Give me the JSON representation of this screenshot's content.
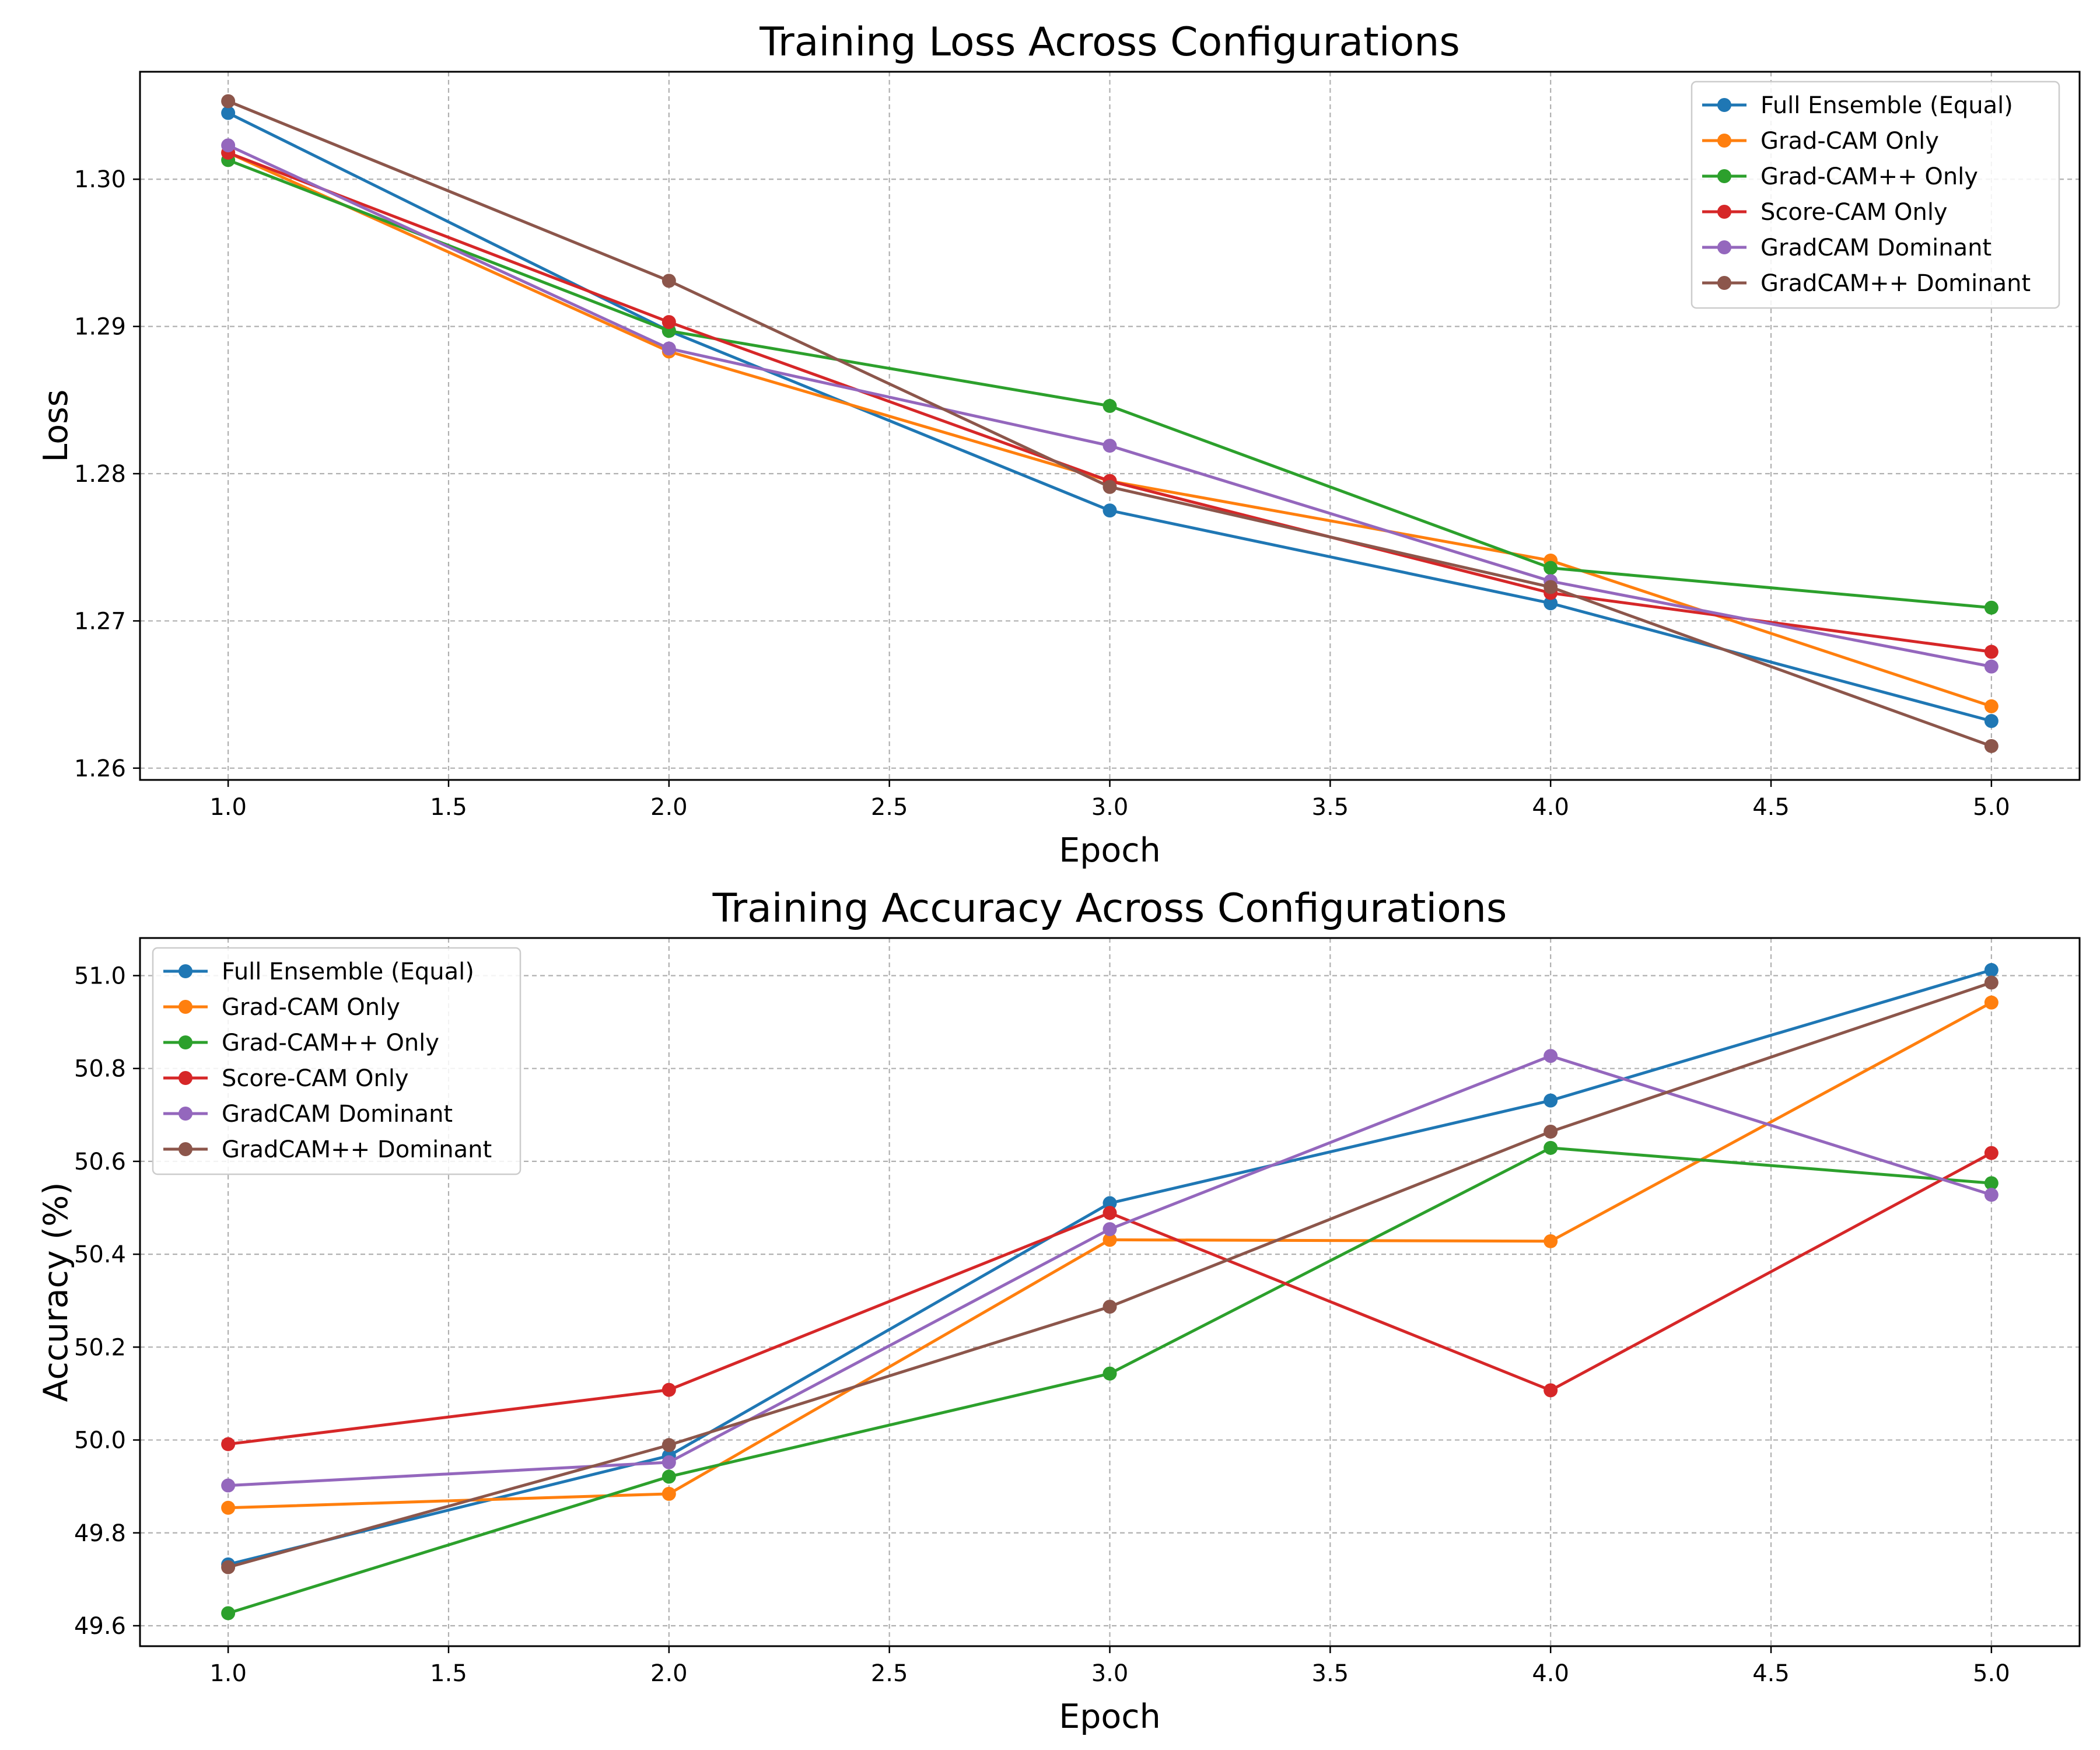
{
  "chart_data": [
    {
      "type": "line",
      "title": "Training Loss Across Configurations",
      "xlabel": "Epoch",
      "ylabel": "Loss",
      "x": [
        1.0,
        2.0,
        3.0,
        4.0,
        5.0
      ],
      "xlim": [
        0.8,
        5.2
      ],
      "ylim": [
        1.2592,
        1.3073
      ],
      "xticks": [
        1.0,
        1.5,
        2.0,
        2.5,
        3.0,
        3.5,
        4.0,
        4.5,
        5.0
      ],
      "xtick_labels": [
        "1.0",
        "1.5",
        "2.0",
        "2.5",
        "3.0",
        "3.5",
        "4.0",
        "4.5",
        "5.0"
      ],
      "yticks": [
        1.26,
        1.27,
        1.28,
        1.29,
        1.3
      ],
      "ytick_labels": [
        "1.26",
        "1.27",
        "1.28",
        "1.29",
        "1.30"
      ],
      "grid": true,
      "legend_position": "top-right",
      "series": [
        {
          "name": "Full Ensemble (Equal)",
          "color": "#1f77b4",
          "values": [
            1.3045,
            1.2897,
            1.2775,
            1.2712,
            1.2632
          ]
        },
        {
          "name": "Grad-CAM Only",
          "color": "#ff7f0e",
          "values": [
            1.3018,
            1.2883,
            1.2795,
            1.2741,
            1.2642
          ]
        },
        {
          "name": "Grad-CAM++ Only",
          "color": "#2ca02c",
          "values": [
            1.3013,
            1.2897,
            1.2846,
            1.2736,
            1.2709
          ]
        },
        {
          "name": "Score-CAM Only",
          "color": "#d62728",
          "values": [
            1.3018,
            1.2903,
            1.2795,
            1.2719,
            1.2679
          ]
        },
        {
          "name": "GradCAM Dominant",
          "color": "#9467bd",
          "values": [
            1.3023,
            1.2885,
            1.2819,
            1.2727,
            1.2669
          ]
        },
        {
          "name": "GradCAM++ Dominant",
          "color": "#8c564b",
          "values": [
            1.3053,
            1.2931,
            1.2791,
            1.2723,
            1.2615
          ]
        }
      ]
    },
    {
      "type": "line",
      "title": "Training Accuracy Across Configurations",
      "xlabel": "Epoch",
      "ylabel": "Accuracy (%)",
      "x": [
        1.0,
        2.0,
        3.0,
        4.0,
        5.0
      ],
      "xlim": [
        0.8,
        5.2
      ],
      "ylim": [
        49.556,
        51.081
      ],
      "xticks": [
        1.0,
        1.5,
        2.0,
        2.5,
        3.0,
        3.5,
        4.0,
        4.5,
        5.0
      ],
      "xtick_labels": [
        "1.0",
        "1.5",
        "2.0",
        "2.5",
        "3.0",
        "3.5",
        "4.0",
        "4.5",
        "5.0"
      ],
      "yticks": [
        49.6,
        49.8,
        50.0,
        50.2,
        50.4,
        50.6,
        50.8,
        51.0
      ],
      "ytick_labels": [
        "49.6",
        "49.8",
        "50.0",
        "50.2",
        "50.4",
        "50.6",
        "50.8",
        "51.0"
      ],
      "grid": true,
      "legend_position": "top-left",
      "series": [
        {
          "name": "Full Ensemble (Equal)",
          "color": "#1f77b4",
          "values": [
            49.732,
            49.966,
            50.51,
            50.731,
            51.012
          ]
        },
        {
          "name": "Grad-CAM Only",
          "color": "#ff7f0e",
          "values": [
            49.854,
            49.884,
            50.431,
            50.428,
            50.942
          ]
        },
        {
          "name": "Grad-CAM++ Only",
          "color": "#2ca02c",
          "values": [
            49.627,
            49.921,
            50.143,
            50.629,
            50.553
          ]
        },
        {
          "name": "Score-CAM Only",
          "color": "#d62728",
          "values": [
            49.991,
            50.108,
            50.489,
            50.107,
            50.618
          ]
        },
        {
          "name": "GradCAM Dominant",
          "color": "#9467bd",
          "values": [
            49.902,
            49.952,
            50.454,
            50.827,
            50.528
          ]
        },
        {
          "name": "GradCAM++ Dominant",
          "color": "#8c564b",
          "values": [
            49.726,
            49.989,
            50.287,
            50.664,
            50.985
          ]
        }
      ]
    }
  ]
}
